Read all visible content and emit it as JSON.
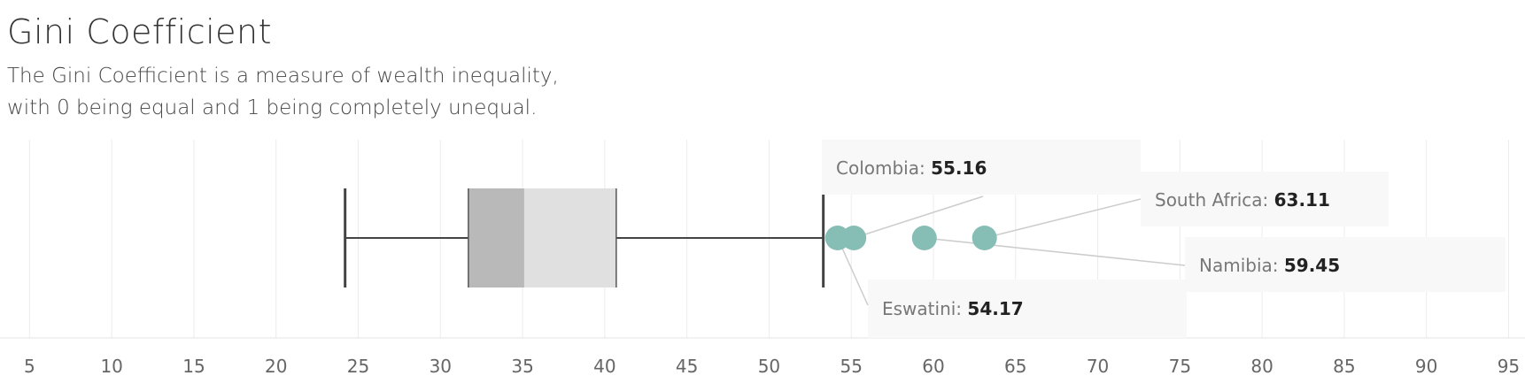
{
  "header": {
    "title": "Gini Coefficient",
    "subtitle_line1": "The Gini Coefficient is a measure of wealth inequality,",
    "subtitle_line2": "with 0 being equal and 1 being completely unequal."
  },
  "chart_data": {
    "type": "box",
    "title": "Gini Coefficient",
    "xlim": [
      3.2,
      96
    ],
    "x_ticks": [
      5,
      10,
      15,
      20,
      25,
      30,
      35,
      40,
      45,
      50,
      55,
      60,
      65,
      70,
      75,
      80,
      85,
      90,
      95
    ],
    "grid": true,
    "box": {
      "whisker_low": 24.2,
      "q1": 31.7,
      "median": 35.1,
      "q3": 40.7,
      "whisker_high": 53.3
    },
    "outliers": [
      {
        "country": "Eswatini",
        "value": 54.17
      },
      {
        "country": "Colombia",
        "value": 55.16
      },
      {
        "country": "Namibia",
        "value": 59.45
      },
      {
        "country": "South Africa",
        "value": 63.11
      }
    ],
    "annotations": [
      {
        "country": "Colombia",
        "label": "Colombia:",
        "value": "55.16"
      },
      {
        "country": "South Africa",
        "label": "South Africa:",
        "value": "63.11"
      },
      {
        "country": "Namibia",
        "label": "Namibia:",
        "value": "59.45"
      },
      {
        "country": "Eswatini",
        "label": "Eswatini:",
        "value": "54.17"
      }
    ],
    "colors": {
      "outlier": "#86bdb5",
      "box_lower": "#b9b9b9",
      "box_upper": "#e0e0e0",
      "whisker": "#444444",
      "grid": "#ececec",
      "callout_bg": "#f8f8f8",
      "leader": "#cccccc"
    }
  }
}
